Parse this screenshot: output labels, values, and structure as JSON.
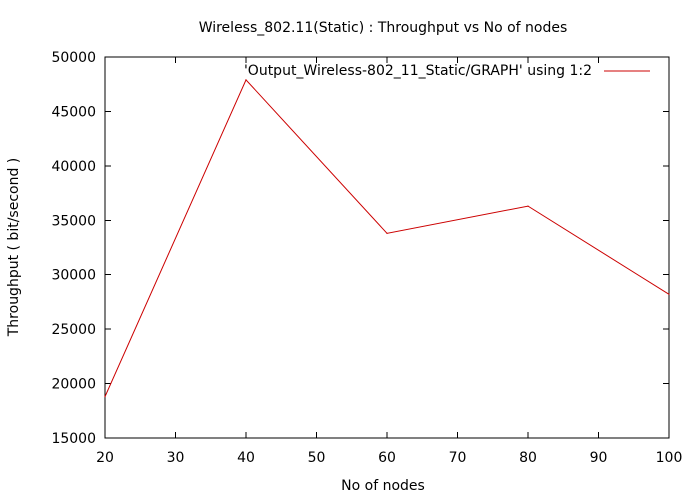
{
  "chart_data": {
    "type": "line",
    "title": "Wireless_802.11(Static) : Throughput vs No of nodes",
    "xlabel": "No of nodes",
    "ylabel": "Throughput ( bit/second )",
    "xlim": [
      20,
      100
    ],
    "ylim": [
      15000,
      50000
    ],
    "x_ticks": [
      20,
      30,
      40,
      50,
      60,
      70,
      80,
      90,
      100
    ],
    "y_ticks": [
      15000,
      20000,
      25000,
      30000,
      35000,
      40000,
      45000,
      50000
    ],
    "grid": false,
    "legend_position": "top-right",
    "series": [
      {
        "name": "'Output_Wireless-802_11_Static/GRAPH' using 1:2",
        "color": "#cc0000",
        "x": [
          20,
          40,
          60,
          80,
          100
        ],
        "y": [
          18800,
          47900,
          33800,
          36300,
          28200
        ]
      }
    ]
  }
}
